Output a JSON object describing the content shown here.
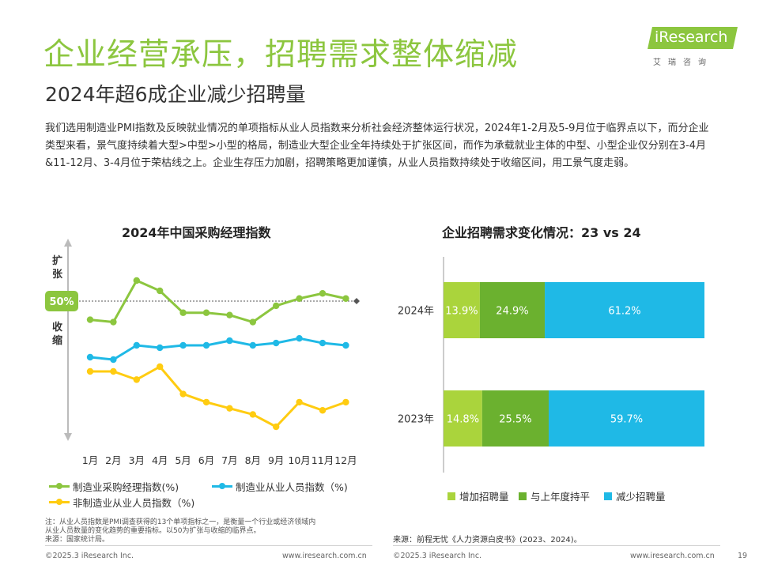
{
  "header": {
    "title": "企业经营承压，招聘需求整体缩减",
    "subtitle": "2024年超6成企业减少招聘量",
    "logo_text": "iResearch",
    "logo_cn": "艾瑞咨询"
  },
  "intro": "我们选用制造业PMI指数及反映就业情况的单项指标从业人员指数来分析社会经济整体运行状况，2024年1-2月及5-9月位于临界点以下，而分企业类型来看，景气度持续着大型>中型>小型的格局，制造业大型企业全年持续处于扩张区间，而作为承载就业主体的中型、小型企业仅分别在3-4月 &11-12月、3-4月位于荣枯线之上。企业生存压力加剧，招聘策略更加谨慎，从业人员指数持续处于收缩区间，用工景气度走弱。",
  "colors": {
    "green": "#8cc63f",
    "dark_green": "#6bb12f",
    "blue": "#1fb9e6",
    "yellow": "#ffcc11",
    "light_green": "#aad43c"
  },
  "chart_data": [
    {
      "type": "line",
      "title": "2024年中国采购经理指数",
      "categories": [
        "1月",
        "2月",
        "3月",
        "4月",
        "5月",
        "6月",
        "7月",
        "8月",
        "9月",
        "10月",
        "11月",
        "12月"
      ],
      "reference": {
        "label": "50%",
        "value": 50
      },
      "y_labels": {
        "top": "扩张",
        "bottom": "收缩"
      },
      "series": [
        {
          "name": "制造业采购经理指数(%)",
          "color": "#8cc63f",
          "values": [
            49.2,
            49.1,
            50.8,
            50.4,
            49.5,
            49.5,
            49.4,
            49.1,
            49.8,
            50.1,
            50.3,
            50.1
          ]
        },
        {
          "name": "制造业从业人员指数（%)",
          "color": "#1fb9e6",
          "values": [
            47.6,
            47.5,
            48.1,
            48.0,
            48.1,
            48.1,
            48.3,
            48.1,
            48.2,
            48.4,
            48.2,
            48.1
          ]
        },
        {
          "name": "非制造业从业人员指数（%)",
          "color": "#ffcc11",
          "values": [
            47.0,
            47.0,
            46.6,
            47.2,
            45.9,
            45.5,
            45.2,
            44.9,
            44.3,
            45.5,
            45.1,
            45.5
          ]
        }
      ]
    },
    {
      "type": "bar",
      "orientation": "horizontal",
      "stacked": true,
      "title": "企业招聘需求变化情况：23 vs 24",
      "categories": [
        "2024年",
        "2023年"
      ],
      "series": [
        {
          "name": "增加招聘量",
          "color": "#aad43c",
          "values": [
            13.9,
            14.8
          ],
          "labels": [
            "13.9%",
            "14.8%"
          ]
        },
        {
          "name": "与上年度持平",
          "color": "#6bb12f",
          "values": [
            24.9,
            25.5
          ],
          "labels": [
            "24.9%",
            "25.5%"
          ]
        },
        {
          "name": "减少招聘量",
          "color": "#1fb9e6",
          "values": [
            61.2,
            59.7
          ],
          "labels": [
            "61.2%",
            "59.7%"
          ]
        }
      ],
      "xlim": [
        0,
        100
      ]
    }
  ],
  "notes": {
    "line1": "注：从业人员指数是PMI调查获得的13个单项指标之一，是衡量一个行业或经济领域内",
    "line2": "从业人员数量的变化趋势的重要指标。以50为扩张与收缩的临界点。",
    "line3": "来源：国家统计局。",
    "source_right": "来源：前程无忧《人力资源白皮书》(2023、2024)。"
  },
  "footer": {
    "copyright": "©2025.3 iResearch Inc.",
    "url": "www.iresearch.com.cn",
    "page": "19"
  }
}
